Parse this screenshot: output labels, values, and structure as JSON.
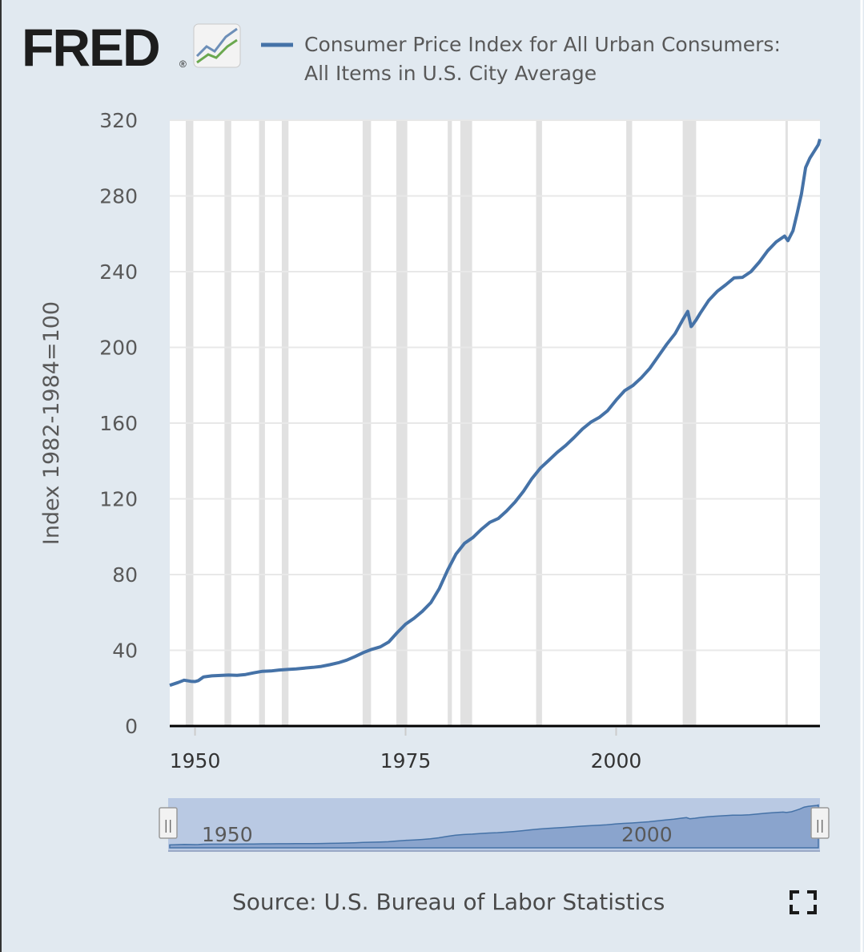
{
  "logo": {
    "text": "FRED",
    "registered": "®"
  },
  "legend": {
    "line1": "Consumer Price Index for All Urban Consumers:",
    "line2": "All Items in U.S. City Average",
    "color": "#4572a7"
  },
  "source": "Source: U.S. Bureau of Labor Statistics",
  "navigator": {
    "tick_labels": [
      "1950",
      "2000"
    ],
    "handle_glyph": "||"
  },
  "chart_data": {
    "type": "line",
    "title": "Consumer Price Index for All Urban Consumers: All Items in U.S. City Average",
    "xlabel": "",
    "ylabel": "Index 1982-1984=100",
    "xlim": [
      1947,
      2024.2
    ],
    "ylim": [
      0,
      320
    ],
    "yticks": [
      0,
      40,
      80,
      120,
      160,
      200,
      240,
      280,
      320
    ],
    "ytick_labels": [
      "0",
      "40",
      "80",
      "120",
      "160",
      "200",
      "240",
      "280",
      "320"
    ],
    "xticks": [
      1950,
      1975,
      2000
    ],
    "xtick_labels": [
      "1950",
      "1975",
      "2000"
    ],
    "grid": "horizontal",
    "recessions": [
      [
        1948.9,
        1949.8
      ],
      [
        1953.5,
        1954.3
      ],
      [
        1957.6,
        1958.3
      ],
      [
        1960.3,
        1961.1
      ],
      [
        1969.9,
        1970.9
      ],
      [
        1973.9,
        1975.2
      ],
      [
        1980.0,
        1980.5
      ],
      [
        1981.5,
        1982.9
      ],
      [
        1990.5,
        1991.2
      ],
      [
        2001.2,
        2001.9
      ],
      [
        2007.9,
        2009.5
      ],
      [
        2020.1,
        2020.3
      ]
    ],
    "series": [
      {
        "name": "Consumer Price Index for All Urban Consumers: All Items in U.S. City Average",
        "x": [
          1947,
          1948,
          1948.7,
          1949.5,
          1950,
          1950.4,
          1951,
          1952,
          1953,
          1954,
          1955,
          1956,
          1957,
          1958,
          1959,
          1960,
          1961,
          1962,
          1963,
          1964,
          1965,
          1966,
          1967,
          1968,
          1969,
          1970,
          1971,
          1972,
          1973,
          1974,
          1975,
          1976,
          1977,
          1978,
          1979,
          1980,
          1981,
          1982,
          1983,
          1984,
          1985,
          1986,
          1987,
          1988,
          1989,
          1990,
          1991,
          1992,
          1993,
          1994,
          1995,
          1996,
          1997,
          1998,
          1999,
          2000,
          2001,
          2002,
          2003,
          2004,
          2005,
          2006,
          2007,
          2008,
          2008.5,
          2008.9,
          2009,
          2009.5,
          2010,
          2011,
          2012,
          2013,
          2014,
          2015,
          2016,
          2017,
          2018,
          2019,
          2020,
          2020.4,
          2021,
          2021.5,
          2022,
          2022.5,
          2023,
          2024,
          2024.2
        ],
        "values": [
          21.5,
          23.0,
          24.2,
          23.6,
          23.5,
          24.0,
          25.9,
          26.5,
          26.7,
          26.9,
          26.8,
          27.2,
          28.1,
          28.9,
          29.1,
          29.6,
          29.9,
          30.2,
          30.6,
          31.0,
          31.5,
          32.4,
          33.4,
          34.8,
          36.7,
          38.8,
          40.5,
          41.8,
          44.4,
          49.3,
          53.8,
          56.9,
          60.6,
          65.2,
          72.6,
          82.4,
          90.9,
          96.5,
          99.6,
          103.9,
          107.6,
          109.6,
          113.6,
          118.3,
          124.0,
          130.7,
          136.2,
          140.3,
          144.5,
          148.2,
          152.4,
          156.9,
          160.5,
          163.0,
          166.6,
          172.2,
          177.1,
          179.9,
          184.0,
          188.9,
          195.3,
          201.6,
          207.3,
          215.3,
          219.0,
          211.0,
          211.4,
          214.5,
          218.1,
          224.9,
          229.6,
          233.0,
          236.7,
          237.0,
          240.0,
          245.1,
          251.1,
          255.7,
          258.8,
          256.4,
          261.6,
          271.0,
          281.1,
          295.0,
          300.0,
          307.0,
          310.0
        ]
      }
    ]
  }
}
